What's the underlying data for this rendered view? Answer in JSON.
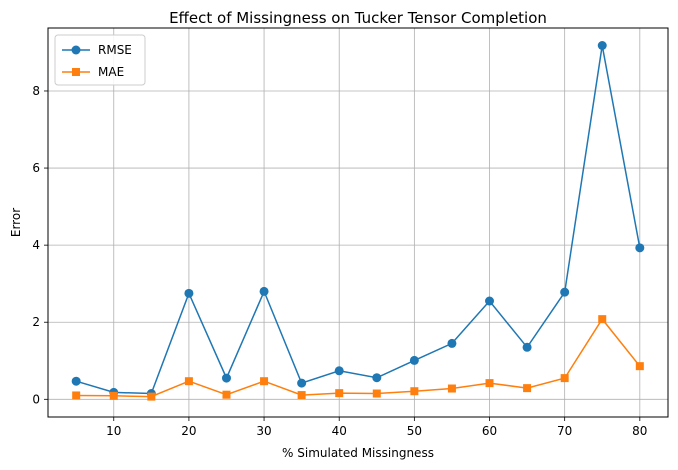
{
  "chart_data": {
    "type": "line",
    "title": "Effect of Missingness on Tucker Tensor Completion",
    "xlabel": "% Simulated Missingness",
    "ylabel": "Error",
    "x": [
      5,
      10,
      15,
      20,
      25,
      30,
      35,
      40,
      45,
      50,
      55,
      60,
      65,
      70,
      75,
      80
    ],
    "series": [
      {
        "name": "RMSE",
        "marker": "circle",
        "color": "#1f77b4",
        "values": [
          0.47,
          0.18,
          0.15,
          2.75,
          0.55,
          2.8,
          0.42,
          0.74,
          0.56,
          1.01,
          1.45,
          2.55,
          1.35,
          2.78,
          9.18,
          3.93
        ]
      },
      {
        "name": "MAE",
        "marker": "square",
        "color": "#ff7f0e",
        "values": [
          0.1,
          0.09,
          0.07,
          0.47,
          0.12,
          0.47,
          0.11,
          0.16,
          0.15,
          0.21,
          0.28,
          0.42,
          0.29,
          0.55,
          2.08,
          0.86
        ]
      }
    ],
    "xticks": [
      10,
      20,
      30,
      40,
      50,
      60,
      70,
      80
    ],
    "yticks": [
      0,
      2,
      4,
      6,
      8
    ],
    "xlim": [
      1.25,
      83.75
    ],
    "ylim": [
      -0.459,
      9.634
    ],
    "grid": true,
    "legend": "top-left"
  }
}
